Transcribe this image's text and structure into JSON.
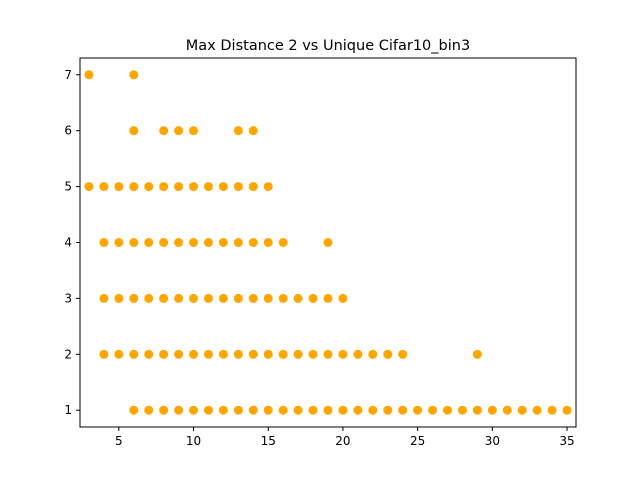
{
  "chart_data": {
    "type": "scatter",
    "title": "Max Distance 2 vs Unique Cifar10_bin3",
    "xlabel": "",
    "ylabel": "",
    "xlim": [
      2.4,
      35.6
    ],
    "ylim": [
      0.7,
      7.3
    ],
    "xticks": [
      5,
      10,
      15,
      20,
      25,
      30,
      35
    ],
    "yticks": [
      1,
      2,
      3,
      4,
      5,
      6,
      7
    ],
    "grid": false,
    "marker_color": "#ffa500",
    "points": [
      [
        3,
        7
      ],
      [
        6,
        7
      ],
      [
        6,
        6
      ],
      [
        8,
        6
      ],
      [
        9,
        6
      ],
      [
        10,
        6
      ],
      [
        13,
        6
      ],
      [
        14,
        6
      ],
      [
        3,
        5
      ],
      [
        4,
        5
      ],
      [
        5,
        5
      ],
      [
        6,
        5
      ],
      [
        7,
        5
      ],
      [
        8,
        5
      ],
      [
        9,
        5
      ],
      [
        10,
        5
      ],
      [
        11,
        5
      ],
      [
        12,
        5
      ],
      [
        13,
        5
      ],
      [
        14,
        5
      ],
      [
        15,
        5
      ],
      [
        4,
        4
      ],
      [
        5,
        4
      ],
      [
        6,
        4
      ],
      [
        7,
        4
      ],
      [
        8,
        4
      ],
      [
        9,
        4
      ],
      [
        10,
        4
      ],
      [
        11,
        4
      ],
      [
        12,
        4
      ],
      [
        13,
        4
      ],
      [
        14,
        4
      ],
      [
        15,
        4
      ],
      [
        16,
        4
      ],
      [
        19,
        4
      ],
      [
        4,
        3
      ],
      [
        5,
        3
      ],
      [
        6,
        3
      ],
      [
        7,
        3
      ],
      [
        8,
        3
      ],
      [
        9,
        3
      ],
      [
        10,
        3
      ],
      [
        11,
        3
      ],
      [
        12,
        3
      ],
      [
        13,
        3
      ],
      [
        14,
        3
      ],
      [
        15,
        3
      ],
      [
        16,
        3
      ],
      [
        17,
        3
      ],
      [
        18,
        3
      ],
      [
        19,
        3
      ],
      [
        20,
        3
      ],
      [
        4,
        2
      ],
      [
        5,
        2
      ],
      [
        6,
        2
      ],
      [
        7,
        2
      ],
      [
        8,
        2
      ],
      [
        9,
        2
      ],
      [
        10,
        2
      ],
      [
        11,
        2
      ],
      [
        12,
        2
      ],
      [
        13,
        2
      ],
      [
        14,
        2
      ],
      [
        15,
        2
      ],
      [
        16,
        2
      ],
      [
        17,
        2
      ],
      [
        18,
        2
      ],
      [
        19,
        2
      ],
      [
        20,
        2
      ],
      [
        21,
        2
      ],
      [
        22,
        2
      ],
      [
        23,
        2
      ],
      [
        24,
        2
      ],
      [
        29,
        2
      ],
      [
        6,
        1
      ],
      [
        7,
        1
      ],
      [
        8,
        1
      ],
      [
        9,
        1
      ],
      [
        10,
        1
      ],
      [
        11,
        1
      ],
      [
        12,
        1
      ],
      [
        13,
        1
      ],
      [
        14,
        1
      ],
      [
        15,
        1
      ],
      [
        16,
        1
      ],
      [
        17,
        1
      ],
      [
        18,
        1
      ],
      [
        19,
        1
      ],
      [
        20,
        1
      ],
      [
        21,
        1
      ],
      [
        22,
        1
      ],
      [
        23,
        1
      ],
      [
        24,
        1
      ],
      [
        25,
        1
      ],
      [
        26,
        1
      ],
      [
        27,
        1
      ],
      [
        28,
        1
      ],
      [
        29,
        1
      ],
      [
        30,
        1
      ],
      [
        31,
        1
      ],
      [
        32,
        1
      ],
      [
        33,
        1
      ],
      [
        34,
        1
      ],
      [
        35,
        1
      ]
    ]
  }
}
